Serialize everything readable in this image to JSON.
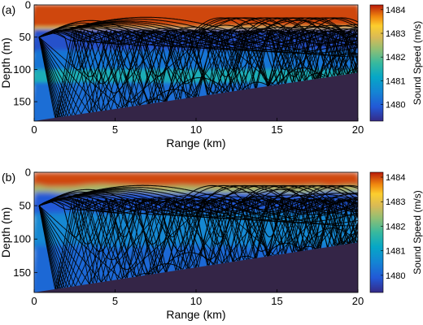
{
  "chart_data": [
    {
      "panel_label": "(a)",
      "type": "heatmap",
      "xlabel": "Range (km)",
      "ylabel": "Depth (m)",
      "xlim": [
        0,
        20
      ],
      "ylim": [
        0,
        180
      ],
      "x_ticks": [
        0,
        5,
        10,
        15,
        20
      ],
      "y_ticks": [
        0,
        50,
        100,
        150
      ],
      "colorbar": {
        "label": "Sound Speed (m/s)",
        "range": [
          1479.3,
          1484.2
        ],
        "ticks": [
          1480,
          1481,
          1482,
          1483,
          1484
        ]
      },
      "sound_speed_layers": [
        {
          "depth_top": 0,
          "depth_bottom": 33,
          "speed": 1484.0
        },
        {
          "depth_top": 33,
          "depth_bottom": 38,
          "speed": 1482.8
        },
        {
          "depth_top": 38,
          "depth_bottom": 70,
          "speed": 1479.8
        },
        {
          "depth_top": 70,
          "depth_bottom": 100,
          "speed": 1480.3
        },
        {
          "depth_top": 100,
          "depth_bottom": 120,
          "speed": 1481.4
        },
        {
          "depth_top": 120,
          "depth_bottom": 180,
          "speed": 1480.2
        }
      ],
      "bottom_profile": {
        "range_km": [
          0,
          0.5,
          20
        ],
        "depth_m": [
          180,
          178,
          105
        ]
      },
      "source_depth": 50,
      "rays": {
        "shallow_bounce": [
          [
            1.5,
            22
          ],
          [
            2.0,
            26
          ],
          [
            2.4,
            30
          ],
          [
            2.8,
            34
          ],
          [
            3.2,
            38
          ],
          [
            3.5,
            41
          ],
          [
            4.2,
            45
          ],
          [
            5.2,
            50
          ],
          [
            6.0,
            55
          ],
          [
            6.7,
            60
          ],
          [
            7.3,
            65
          ],
          [
            8.0,
            70
          ],
          [
            8.7,
            75
          ],
          [
            9.5,
            80
          ],
          [
            10.2,
            85
          ],
          [
            11.0,
            90
          ],
          [
            12.0,
            100
          ],
          [
            13.2,
            110
          ]
        ],
        "deep_bounce": [
          [
            1.6,
            28
          ],
          [
            2.1,
            34
          ],
          [
            2.6,
            40
          ],
          [
            3.1,
            48
          ],
          [
            3.8,
            56
          ],
          [
            4.6,
            66
          ],
          [
            5.4,
            78
          ],
          [
            6.4,
            92
          ]
        ],
        "surface_arches": [
          [
            11.5,
            3.5
          ],
          [
            12.0,
            4.2
          ],
          [
            12.5,
            5.0
          ],
          [
            13.0,
            4.5
          ],
          [
            13.2,
            6.0
          ],
          [
            14.0,
            3.6
          ],
          [
            14.4,
            5.2
          ],
          [
            15.0,
            4.0
          ],
          [
            15.6,
            4.8
          ],
          [
            16.0,
            3.8
          ],
          [
            16.5,
            5.4
          ],
          [
            17.0,
            4.4
          ],
          [
            17.4,
            3.6
          ],
          [
            18.0,
            5.0
          ],
          [
            18.5,
            4.2
          ],
          [
            19.0,
            3.9
          ]
        ]
      }
    },
    {
      "panel_label": "(b)",
      "type": "heatmap",
      "xlabel": "Range (km)",
      "ylabel": "Depth (m)",
      "xlim": [
        0,
        20
      ],
      "ylim": [
        0,
        180
      ],
      "x_ticks": [
        0,
        5,
        10,
        15,
        20
      ],
      "y_ticks": [
        0,
        50,
        100,
        150
      ],
      "colorbar": {
        "label": "Sound Speed (m/s)",
        "range": [
          1479.3,
          1484.2
        ],
        "ticks": [
          1480,
          1481,
          1482,
          1483,
          1484
        ]
      },
      "sound_speed_layers": [
        {
          "depth_top": 0,
          "depth_bottom": 20,
          "speed": 1484.0
        },
        {
          "depth_top": 20,
          "depth_bottom": 30,
          "speed": 1482.5
        },
        {
          "depth_top": 30,
          "depth_bottom": 60,
          "speed": 1479.9
        },
        {
          "depth_top": 60,
          "depth_bottom": 110,
          "speed": 1480.6
        },
        {
          "depth_top": 110,
          "depth_bottom": 180,
          "speed": 1480.1
        }
      ],
      "bottom_profile": {
        "range_km": [
          0,
          0.5,
          20
        ],
        "depth_m": [
          180,
          178,
          105
        ]
      },
      "source_depth": 50,
      "rays": {
        "shallow_bounce": [
          [
            1.2,
            20
          ],
          [
            1.7,
            24
          ],
          [
            2.2,
            28
          ],
          [
            2.6,
            32
          ],
          [
            3.0,
            36
          ],
          [
            3.3,
            40
          ],
          [
            4.0,
            44
          ],
          [
            4.8,
            48
          ],
          [
            5.6,
            52
          ],
          [
            6.2,
            57
          ],
          [
            6.9,
            62
          ],
          [
            7.5,
            67
          ],
          [
            8.2,
            72
          ],
          [
            9.0,
            78
          ],
          [
            9.8,
            84
          ],
          [
            10.6,
            90
          ],
          [
            11.6,
            98
          ],
          [
            12.8,
            108
          ]
        ],
        "deep_bounce": [
          [
            1.5,
            26
          ],
          [
            2.0,
            32
          ],
          [
            2.5,
            38
          ],
          [
            3.0,
            45
          ],
          [
            3.6,
            53
          ],
          [
            4.3,
            62
          ],
          [
            5.1,
            73
          ],
          [
            6.0,
            86
          ]
        ],
        "surface_arches": [
          [
            11.0,
            4.0
          ],
          [
            11.7,
            4.6
          ],
          [
            12.4,
            3.8
          ],
          [
            13.0,
            5.2
          ],
          [
            13.6,
            4.2
          ],
          [
            14.2,
            5.6
          ],
          [
            14.8,
            4.0
          ],
          [
            15.4,
            5.0
          ],
          [
            16.0,
            4.4
          ],
          [
            16.6,
            3.8
          ],
          [
            17.2,
            5.2
          ],
          [
            17.8,
            4.6
          ],
          [
            18.4,
            4.0
          ],
          [
            19.0,
            5.0
          ],
          [
            19.5,
            4.2
          ]
        ]
      }
    }
  ]
}
